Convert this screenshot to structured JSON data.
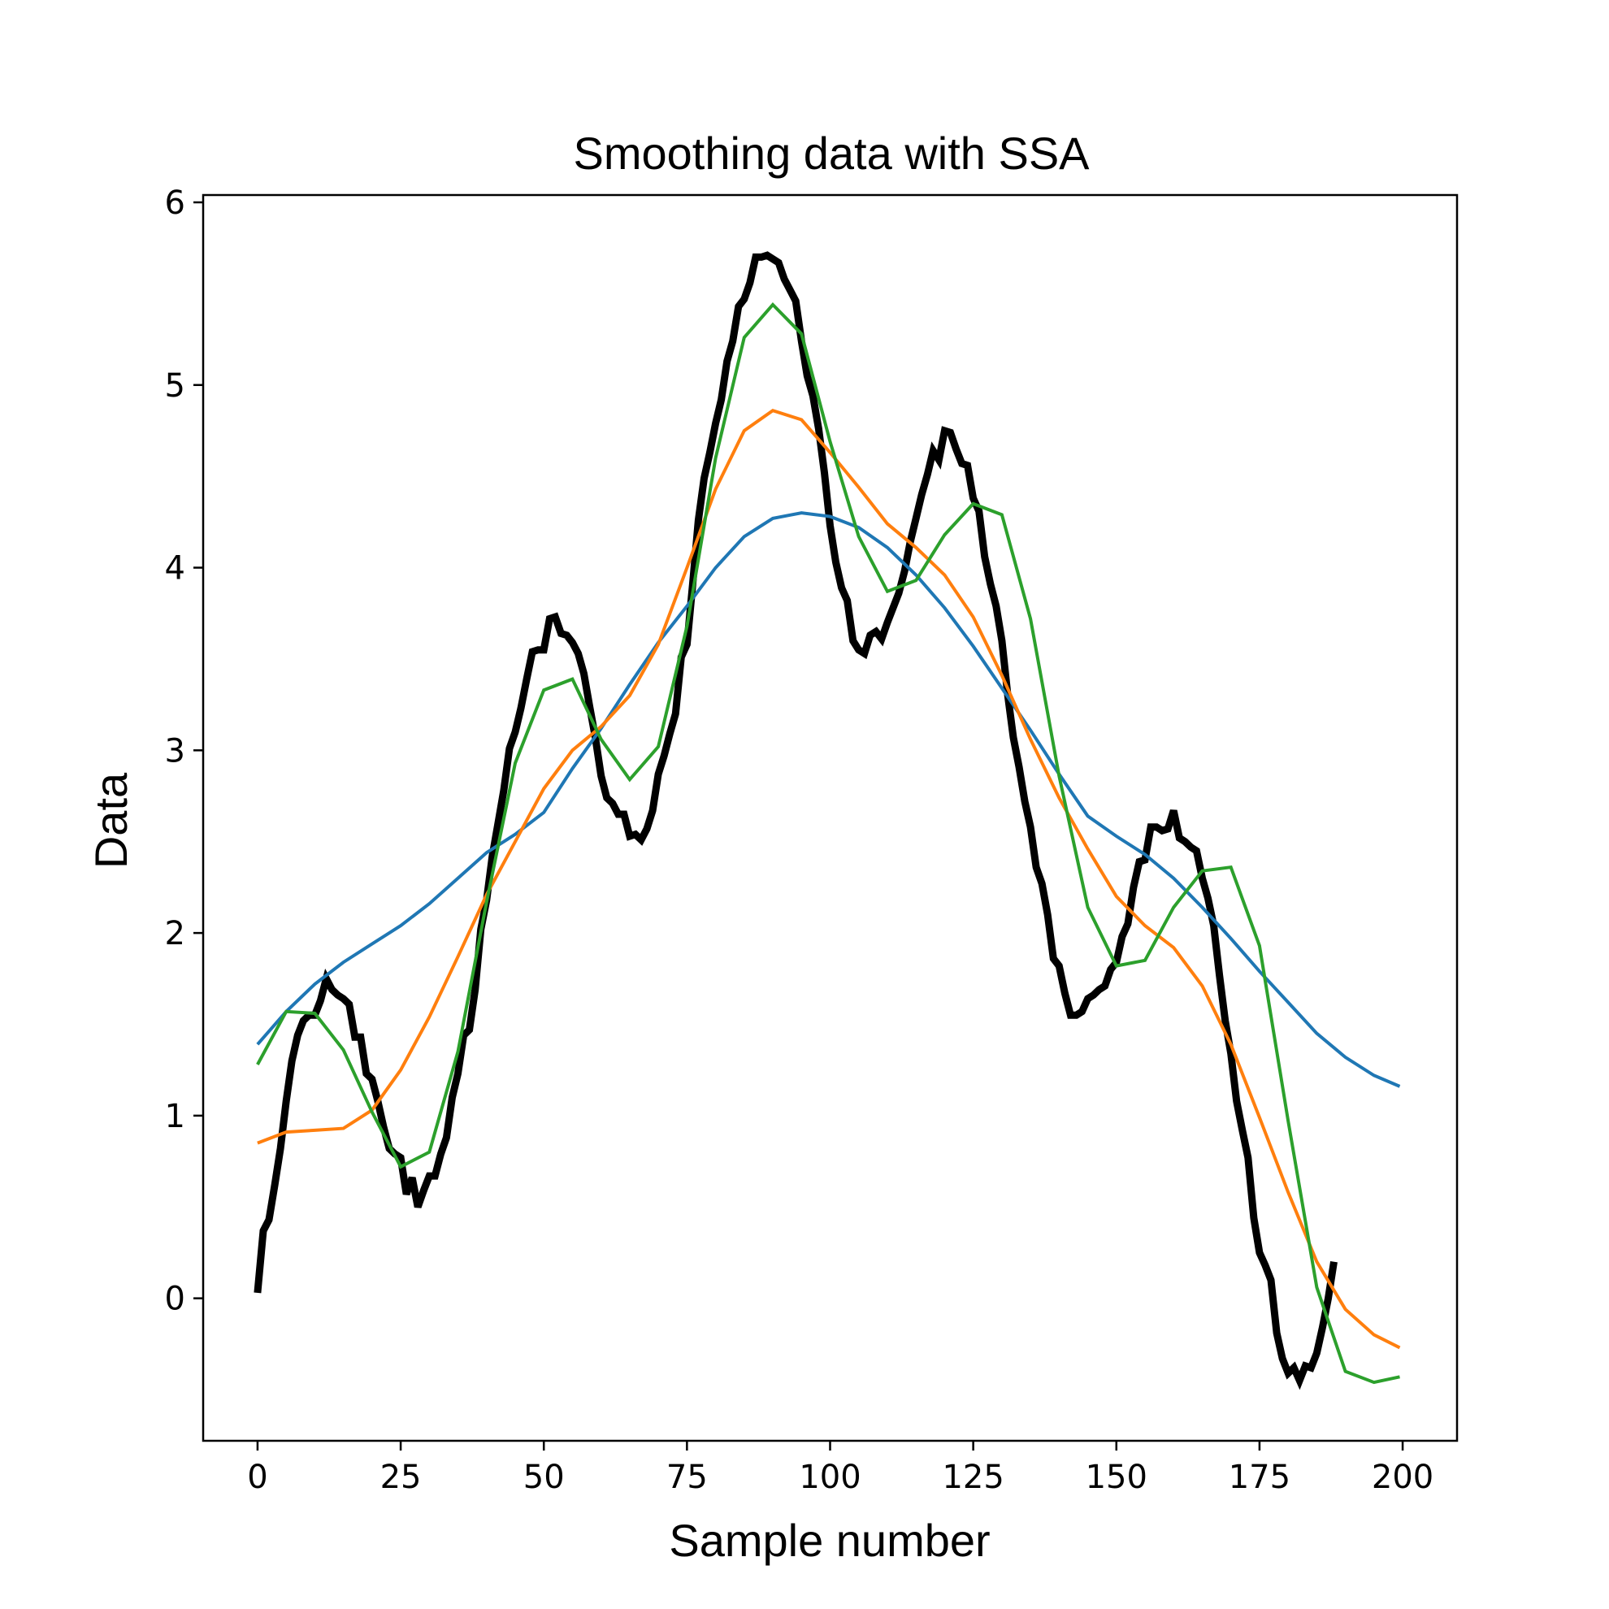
{
  "chart_data": {
    "type": "line",
    "title": "Smoothing data with SSA",
    "xlabel": "Sample number",
    "ylabel": "Data",
    "xlim": [
      -9.5,
      209.5
    ],
    "ylim": [
      -0.78,
      6.04
    ],
    "xticks": [
      0,
      25,
      50,
      75,
      100,
      125,
      150,
      175,
      200
    ],
    "yticks": [
      0,
      1,
      2,
      3,
      4,
      5,
      6
    ],
    "grid": false,
    "legend": "none",
    "series": [
      {
        "color": "#000000",
        "points": [
          [
            0,
            0.03
          ],
          [
            1,
            0.37
          ],
          [
            2,
            0.43
          ],
          [
            3,
            0.62
          ],
          [
            4,
            0.82
          ],
          [
            5,
            1.08
          ],
          [
            6,
            1.3
          ],
          [
            7,
            1.44
          ],
          [
            8,
            1.52
          ],
          [
            9,
            1.55
          ],
          [
            10,
            1.55
          ],
          [
            11,
            1.63
          ],
          [
            12,
            1.75
          ],
          [
            13,
            1.69
          ],
          [
            14,
            1.66
          ],
          [
            15,
            1.64
          ],
          [
            16,
            1.61
          ],
          [
            17,
            1.43
          ],
          [
            18,
            1.43
          ],
          [
            19,
            1.23
          ],
          [
            20,
            1.2
          ],
          [
            21,
            1.08
          ],
          [
            22,
            0.94
          ],
          [
            23,
            0.82
          ],
          [
            24,
            0.79
          ],
          [
            25,
            0.77
          ],
          [
            26,
            0.57
          ],
          [
            27,
            0.66
          ],
          [
            28,
            0.5
          ],
          [
            29,
            0.59
          ],
          [
            30,
            0.67
          ],
          [
            31,
            0.67
          ],
          [
            32,
            0.79
          ],
          [
            33,
            0.88
          ],
          [
            34,
            1.1
          ],
          [
            35,
            1.23
          ],
          [
            36,
            1.44
          ],
          [
            37,
            1.47
          ],
          [
            38,
            1.69
          ],
          [
            39,
            2.02
          ],
          [
            40,
            2.18
          ],
          [
            41,
            2.42
          ],
          [
            42,
            2.6
          ],
          [
            43,
            2.78
          ],
          [
            44,
            3.01
          ],
          [
            45,
            3.1
          ],
          [
            46,
            3.23
          ],
          [
            47,
            3.39
          ],
          [
            48,
            3.54
          ],
          [
            49,
            3.55
          ],
          [
            50,
            3.55
          ],
          [
            51,
            3.72
          ],
          [
            52,
            3.73
          ],
          [
            53,
            3.64
          ],
          [
            54,
            3.63
          ],
          [
            55,
            3.59
          ],
          [
            56,
            3.53
          ],
          [
            57,
            3.42
          ],
          [
            58,
            3.24
          ],
          [
            59,
            3.07
          ],
          [
            60,
            2.86
          ],
          [
            61,
            2.74
          ],
          [
            62,
            2.71
          ],
          [
            63,
            2.65
          ],
          [
            64,
            2.65
          ],
          [
            65,
            2.53
          ],
          [
            66,
            2.54
          ],
          [
            67,
            2.51
          ],
          [
            68,
            2.57
          ],
          [
            69,
            2.67
          ],
          [
            70,
            2.87
          ],
          [
            71,
            2.97
          ],
          [
            72,
            3.09
          ],
          [
            73,
            3.2
          ],
          [
            74,
            3.51
          ],
          [
            75,
            3.58
          ],
          [
            76,
            3.91
          ],
          [
            77,
            4.26
          ],
          [
            78,
            4.49
          ],
          [
            79,
            4.63
          ],
          [
            80,
            4.79
          ],
          [
            81,
            4.92
          ],
          [
            82,
            5.13
          ],
          [
            83,
            5.24
          ],
          [
            84,
            5.43
          ],
          [
            85,
            5.47
          ],
          [
            86,
            5.56
          ],
          [
            87,
            5.7
          ],
          [
            88,
            5.7
          ],
          [
            89,
            5.71
          ],
          [
            90,
            5.69
          ],
          [
            91,
            5.67
          ],
          [
            92,
            5.58
          ],
          [
            93,
            5.52
          ],
          [
            94,
            5.46
          ],
          [
            95,
            5.24
          ],
          [
            96,
            5.05
          ],
          [
            97,
            4.94
          ],
          [
            98,
            4.76
          ],
          [
            99,
            4.52
          ],
          [
            100,
            4.23
          ],
          [
            101,
            4.03
          ],
          [
            102,
            3.89
          ],
          [
            103,
            3.82
          ],
          [
            104,
            3.6
          ],
          [
            105,
            3.55
          ],
          [
            106,
            3.53
          ],
          [
            107,
            3.63
          ],
          [
            108,
            3.65
          ],
          [
            109,
            3.61
          ],
          [
            110,
            3.7
          ],
          [
            111,
            3.78
          ],
          [
            112,
            3.86
          ],
          [
            113,
            3.98
          ],
          [
            114,
            4.14
          ],
          [
            115,
            4.27
          ],
          [
            116,
            4.4
          ],
          [
            117,
            4.51
          ],
          [
            118,
            4.64
          ],
          [
            119,
            4.59
          ],
          [
            120,
            4.75
          ],
          [
            121,
            4.74
          ],
          [
            122,
            4.65
          ],
          [
            123,
            4.57
          ],
          [
            124,
            4.56
          ],
          [
            125,
            4.38
          ],
          [
            126,
            4.31
          ],
          [
            127,
            4.06
          ],
          [
            128,
            3.91
          ],
          [
            129,
            3.79
          ],
          [
            130,
            3.6
          ],
          [
            131,
            3.31
          ],
          [
            132,
            3.07
          ],
          [
            133,
            2.91
          ],
          [
            134,
            2.72
          ],
          [
            135,
            2.58
          ],
          [
            136,
            2.36
          ],
          [
            137,
            2.27
          ],
          [
            138,
            2.1
          ],
          [
            139,
            1.86
          ],
          [
            140,
            1.82
          ],
          [
            141,
            1.67
          ],
          [
            142,
            1.55
          ],
          [
            143,
            1.55
          ],
          [
            144,
            1.57
          ],
          [
            145,
            1.64
          ],
          [
            146,
            1.66
          ],
          [
            147,
            1.69
          ],
          [
            148,
            1.71
          ],
          [
            149,
            1.8
          ],
          [
            150,
            1.84
          ],
          [
            151,
            1.98
          ],
          [
            152,
            2.05
          ],
          [
            153,
            2.25
          ],
          [
            154,
            2.39
          ],
          [
            155,
            2.4
          ],
          [
            156,
            2.58
          ],
          [
            157,
            2.58
          ],
          [
            158,
            2.56
          ],
          [
            159,
            2.57
          ],
          [
            160,
            2.67
          ],
          [
            161,
            2.52
          ],
          [
            162,
            2.5
          ],
          [
            163,
            2.47
          ],
          [
            164,
            2.45
          ],
          [
            165,
            2.3
          ],
          [
            166,
            2.19
          ],
          [
            167,
            2.04
          ],
          [
            168,
            1.77
          ],
          [
            169,
            1.52
          ],
          [
            170,
            1.34
          ],
          [
            171,
            1.08
          ],
          [
            172,
            0.92
          ],
          [
            173,
            0.77
          ],
          [
            174,
            0.44
          ],
          [
            175,
            0.25
          ],
          [
            176,
            0.18
          ],
          [
            177,
            0.1
          ],
          [
            178,
            -0.19
          ],
          [
            179,
            -0.33
          ],
          [
            180,
            -0.41
          ],
          [
            181,
            -0.38
          ],
          [
            182,
            -0.45
          ],
          [
            183,
            -0.37
          ],
          [
            184,
            -0.38
          ],
          [
            185,
            -0.3
          ],
          [
            186,
            -0.16
          ],
          [
            187,
            0.0
          ],
          [
            188,
            0.2
          ]
        ]
      },
      {
        "color": "#1f77b4",
        "points": [
          [
            0,
            1.39
          ],
          [
            5,
            1.57
          ],
          [
            10,
            1.72
          ],
          [
            15,
            1.84
          ],
          [
            20,
            1.94
          ],
          [
            25,
            2.04
          ],
          [
            30,
            2.16
          ],
          [
            35,
            2.3
          ],
          [
            40,
            2.44
          ],
          [
            45,
            2.54
          ],
          [
            50,
            2.66
          ],
          [
            55,
            2.9
          ],
          [
            60,
            3.12
          ],
          [
            65,
            3.36
          ],
          [
            70,
            3.59
          ],
          [
            75,
            3.79
          ],
          [
            80,
            4.0
          ],
          [
            85,
            4.17
          ],
          [
            90,
            4.27
          ],
          [
            95,
            4.3
          ],
          [
            100,
            4.28
          ],
          [
            105,
            4.22
          ],
          [
            110,
            4.11
          ],
          [
            115,
            3.96
          ],
          [
            120,
            3.78
          ],
          [
            125,
            3.57
          ],
          [
            130,
            3.34
          ],
          [
            135,
            3.11
          ],
          [
            140,
            2.87
          ],
          [
            145,
            2.64
          ],
          [
            150,
            2.53
          ],
          [
            155,
            2.43
          ],
          [
            160,
            2.3
          ],
          [
            165,
            2.14
          ],
          [
            170,
            1.97
          ],
          [
            175,
            1.79
          ],
          [
            180,
            1.62
          ],
          [
            185,
            1.45
          ],
          [
            190,
            1.32
          ],
          [
            195,
            1.22
          ],
          [
            199.5,
            1.16
          ]
        ]
      },
      {
        "color": "#ff7f0e",
        "points": [
          [
            0,
            0.85
          ],
          [
            5,
            0.91
          ],
          [
            10,
            0.92
          ],
          [
            15,
            0.93
          ],
          [
            20,
            1.03
          ],
          [
            25,
            1.25
          ],
          [
            30,
            1.54
          ],
          [
            35,
            1.87
          ],
          [
            40,
            2.21
          ],
          [
            45,
            2.5
          ],
          [
            50,
            2.79
          ],
          [
            55,
            3.0
          ],
          [
            60,
            3.13
          ],
          [
            65,
            3.3
          ],
          [
            70,
            3.58
          ],
          [
            75,
            4.0
          ],
          [
            80,
            4.43
          ],
          [
            85,
            4.75
          ],
          [
            90,
            4.86
          ],
          [
            95,
            4.81
          ],
          [
            100,
            4.63
          ],
          [
            105,
            4.44
          ],
          [
            110,
            4.24
          ],
          [
            115,
            4.11
          ],
          [
            120,
            3.96
          ],
          [
            125,
            3.73
          ],
          [
            130,
            3.41
          ],
          [
            135,
            3.06
          ],
          [
            140,
            2.74
          ],
          [
            145,
            2.46
          ],
          [
            150,
            2.2
          ],
          [
            155,
            2.04
          ],
          [
            160,
            1.92
          ],
          [
            165,
            1.71
          ],
          [
            170,
            1.39
          ],
          [
            175,
            0.99
          ],
          [
            180,
            0.58
          ],
          [
            185,
            0.2
          ],
          [
            190,
            -0.06
          ],
          [
            195,
            -0.2
          ],
          [
            199.5,
            -0.27
          ]
        ]
      },
      {
        "color": "#2ca02c",
        "points": [
          [
            0,
            1.28
          ],
          [
            5,
            1.57
          ],
          [
            10,
            1.56
          ],
          [
            15,
            1.36
          ],
          [
            20,
            1.02
          ],
          [
            25,
            0.72
          ],
          [
            30,
            0.8
          ],
          [
            35,
            1.35
          ],
          [
            40,
            2.17
          ],
          [
            45,
            2.93
          ],
          [
            50,
            3.33
          ],
          [
            55,
            3.39
          ],
          [
            60,
            3.06
          ],
          [
            65,
            2.84
          ],
          [
            70,
            3.02
          ],
          [
            75,
            3.68
          ],
          [
            80,
            4.6
          ],
          [
            85,
            5.26
          ],
          [
            90,
            5.44
          ],
          [
            95,
            5.28
          ],
          [
            100,
            4.69
          ],
          [
            105,
            4.17
          ],
          [
            110,
            3.87
          ],
          [
            115,
            3.93
          ],
          [
            120,
            4.18
          ],
          [
            125,
            4.35
          ],
          [
            130,
            4.29
          ],
          [
            135,
            3.72
          ],
          [
            140,
            2.86
          ],
          [
            145,
            2.14
          ],
          [
            150,
            1.82
          ],
          [
            155,
            1.85
          ],
          [
            160,
            2.14
          ],
          [
            165,
            2.34
          ],
          [
            170,
            2.36
          ],
          [
            175,
            1.93
          ],
          [
            180,
            0.97
          ],
          [
            185,
            0.06
          ],
          [
            190,
            -0.4
          ],
          [
            195,
            -0.46
          ],
          [
            199.5,
            -0.43
          ]
        ]
      }
    ]
  }
}
